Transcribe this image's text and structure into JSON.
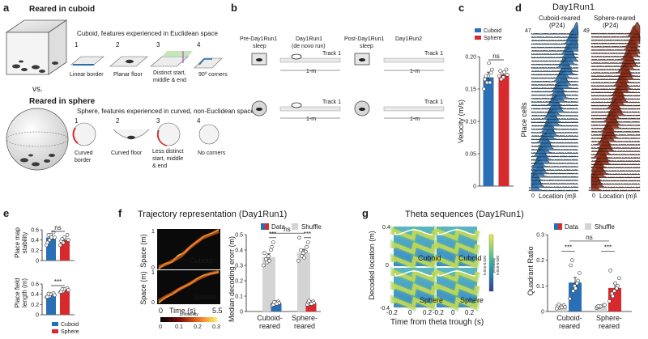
{
  "colors": {
    "cuboid": "#2a6fb5",
    "sphere": "#d72a2e",
    "shuffle": "#d4d4d4",
    "track": "#e9e9e9"
  },
  "panel_a": {
    "label": "a",
    "cuboid_title": "Reared in cuboid",
    "cuboid_caption": "Cuboid, features experienced in Euclidean space",
    "cuboid_features": [
      "Linear border",
      "Planar floor",
      "Distinct start, middle & end",
      "90º corners"
    ],
    "vs": "vs.",
    "sphere_title": "Reared in sphere",
    "sphere_caption": "Sphere, features experienced in curved, non-Euclidean space",
    "sphere_features": [
      "Curved border",
      "Curved floor",
      "Less distinct start, middle & end",
      "No corners"
    ],
    "numbers": [
      "1",
      "2",
      "3",
      "4"
    ]
  },
  "panel_b": {
    "label": "b",
    "stages": [
      "Pre-Day1Run1 sleep",
      "Day1Run1 (de novo run)",
      "Post-Day1Run1 sleep",
      "Day1Run2"
    ],
    "track_label": "Track 1",
    "length_label": "1-m"
  },
  "panel_c": {
    "label": "c",
    "ylabel": "Velocity (m/s)",
    "ticks": [
      "0",
      "0.05",
      "0.10",
      "0.15",
      "0.20"
    ],
    "legend": [
      "Cuboid",
      "Sphere"
    ],
    "sig": "ns"
  },
  "panel_d": {
    "label": "d",
    "title": "Day1Run1",
    "left_title": "Cuboid-reared (P24)",
    "right_title": "Sphere-reared (P24)",
    "left_count": "47",
    "right_count": "49",
    "ylabel": "Place cells",
    "xlabel": "Location (m)",
    "one": "1",
    "x0": "0",
    "x1": "1"
  },
  "panel_e": {
    "label": "e",
    "top_ylabel": "Place map stability",
    "bottom_ylabel": "Place field length (m)",
    "top_sig": "ns",
    "bottom_sig": "***",
    "legend": [
      "Cuboid",
      "Sphere"
    ]
  },
  "panel_f": {
    "label": "f",
    "title": "Trajectory representation (Day1Run1)",
    "ylabel_left": "Space (m)",
    "img_labels": [
      "Cuboid",
      "Sphere"
    ],
    "xlabel": "Time (s)",
    "x0": "0",
    "x1": "5.5",
    "y0": "0",
    "y1": "1",
    "cbar_ticks": [
      "0",
      "0.1",
      "0.2",
      "0.3"
    ],
    "cbar_label": "probability",
    "legend": [
      "Data",
      "Shuffle"
    ],
    "bar_ylabel": "Median decoding erorr (m)",
    "sigs": [
      "***",
      "ns",
      "***"
    ],
    "groups": [
      "Cuboid-reared",
      "Sphere-reared"
    ]
  },
  "panel_g": {
    "label": "g",
    "title": "Theta sequences (Day1Run1)",
    "ylabel": "Decoded location (m)",
    "xlabel": "Time from theta trough (s)",
    "img_labels": [
      "Cuboid",
      "Cuboid",
      "Sphere",
      "Sphere"
    ],
    "cbar_label": "probability",
    "cbar_left": "0.015-0.020",
    "cbar_right": "0.010-0.020",
    "legend": [
      "Data",
      "Shuffle"
    ],
    "bar_ylabel": "Quadrant Ratio",
    "sigs": [
      "***",
      "ns",
      "***"
    ],
    "groups": [
      "Cuboid-reared",
      "Sphere-reared"
    ]
  },
  "chart_data": [
    {
      "type": "bar",
      "panel": "c",
      "ylabel": "Velocity (m/s)",
      "categories": [
        "Cuboid",
        "Sphere"
      ],
      "values": [
        0.168,
        0.172
      ],
      "errors": [
        0.008,
        0.004
      ],
      "points": [
        [
          0.15,
          0.16,
          0.17,
          0.175,
          0.18,
          0.165,
          0.17,
          0.19,
          0.16
        ],
        [
          0.17,
          0.175,
          0.168,
          0.18,
          0.172,
          0.178,
          0.165,
          0.176
        ]
      ],
      "ylim": [
        0,
        0.2
      ],
      "yticks": [
        "0",
        "0.05",
        "0.10",
        "0.15",
        "0.20"
      ],
      "annotation": "ns"
    },
    {
      "type": "bar",
      "panel": "e-top",
      "ylabel": "Place map stability",
      "categories": [
        "Cuboid",
        "Sphere"
      ],
      "values": [
        0.45,
        0.4
      ],
      "errors": [
        0.04,
        0.04
      ],
      "points": [
        [
          0.3,
          0.4,
          0.5,
          0.55,
          0.45,
          0.35,
          0.5,
          0.45
        ],
        [
          0.3,
          0.35,
          0.45,
          0.5,
          0.4,
          0.38,
          0.42
        ]
      ],
      "ylim": [
        0,
        0.6
      ],
      "yticks": [
        "0",
        "0.2",
        "0.4",
        "0.6"
      ],
      "annotation": "ns"
    },
    {
      "type": "bar",
      "panel": "e-bottom",
      "ylabel": "Place field length (m)",
      "categories": [
        "Cuboid",
        "Sphere"
      ],
      "values": [
        0.38,
        0.48
      ],
      "errors": [
        0.02,
        0.02
      ],
      "points": [
        [
          0.34,
          0.36,
          0.4,
          0.42,
          0.38,
          0.35,
          0.41
        ],
        [
          0.44,
          0.46,
          0.5,
          0.52,
          0.48,
          0.45,
          0.5
        ]
      ],
      "ylim": [
        0,
        0.6
      ],
      "yticks": [
        "0",
        "0.2",
        "0.4",
        "0.6"
      ],
      "annotation": "***"
    },
    {
      "type": "bar",
      "panel": "f",
      "ylabel": "Median decoding erorr (m)",
      "categories": [
        "Cuboid-reared",
        "Sphere-reared"
      ],
      "series": [
        {
          "name": "Data",
          "values": [
            0.055,
            0.055
          ],
          "errors": [
            0.005,
            0.005
          ]
        },
        {
          "name": "Shuffle",
          "values": [
            0.355,
            0.385
          ],
          "errors": [
            0.02,
            0.02
          ]
        }
      ],
      "data_points": [
        [
          0.04,
          0.05,
          0.06,
          0.065,
          0.055,
          0.045,
          0.06,
          0.05
        ],
        [
          0.045,
          0.05,
          0.06,
          0.065,
          0.055,
          0.06,
          0.07,
          0.05
        ]
      ],
      "shuffle_points": [
        [
          0.3,
          0.32,
          0.36,
          0.42,
          0.45,
          0.38,
          0.34,
          0.33,
          0.4
        ],
        [
          0.33,
          0.36,
          0.38,
          0.42,
          0.45,
          0.48,
          0.4,
          0.35,
          0.39
        ]
      ],
      "ylim": [
        0,
        0.5
      ],
      "yticks": [
        "0",
        "0.1",
        "0.2",
        "0.3",
        "0.4",
        "0.5"
      ],
      "annotations": [
        "***",
        "ns",
        "***"
      ]
    },
    {
      "type": "bar",
      "panel": "g",
      "ylabel": "Quadrant Ratio",
      "categories": [
        "Cuboid-reared",
        "Sphere-reared"
      ],
      "series": [
        {
          "name": "Shuffle",
          "values": [
            0.02,
            0.02
          ],
          "errors": [
            0.003,
            0.003
          ]
        },
        {
          "name": "Data",
          "values": [
            0.113,
            0.092
          ],
          "errors": [
            0.02,
            0.017
          ]
        }
      ],
      "shuffle_points": [
        [
          0.012,
          0.015,
          0.02,
          0.025,
          0.018,
          0.022,
          0.028,
          0.016
        ],
        [
          0.014,
          0.017,
          0.02,
          0.024,
          0.026,
          0.019,
          0.021
        ]
      ],
      "data_points": [
        [
          0.05,
          0.08,
          0.1,
          0.12,
          0.15,
          0.18,
          0.2,
          0.09,
          0.11
        ],
        [
          0.04,
          0.06,
          0.08,
          0.1,
          0.13,
          0.16,
          0.07,
          0.11,
          0.09
        ]
      ],
      "ylim": [
        0,
        0.3
      ],
      "yticks": [
        "0",
        "0.1",
        "0.2",
        "0.3"
      ],
      "annotations": [
        "***",
        "ns",
        "***"
      ]
    }
  ]
}
